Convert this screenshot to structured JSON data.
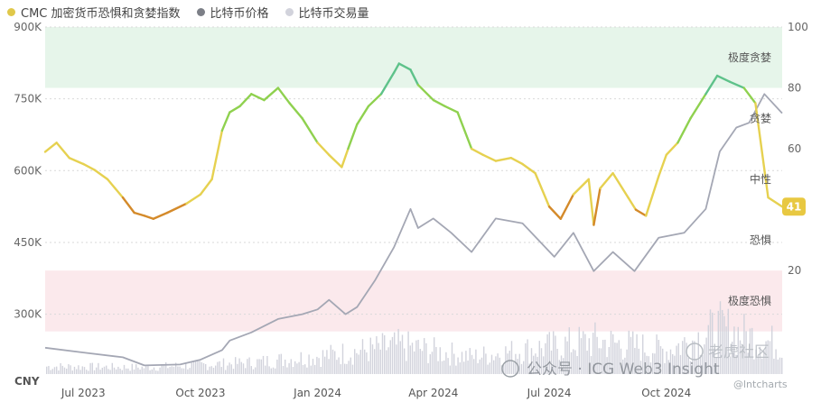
{
  "legend": [
    {
      "label": "CMC 加密货币恐惧和贪婪指数",
      "color": "#e0c84a"
    },
    {
      "label": "比特币价格",
      "color": "#7c7f87"
    },
    {
      "label": "比特币交易量",
      "color": "#d2d3dc"
    }
  ],
  "watermark": {
    "wechat": "公众号 · ICG Web3 Insight",
    "tiger": "老虎社区",
    "handle": "@lntcharts"
  },
  "chart_data": {
    "type": "line",
    "x_ticks": [
      "Jul 2023",
      "Oct 2023",
      "Jan 2024",
      "Apr 2024",
      "Jul 2024",
      "Oct 2024"
    ],
    "x_range": [
      "2023-06-01",
      "2024-12-31"
    ],
    "left_axis": {
      "unit": "CNY",
      "ticks": [
        "300K",
        "450K",
        "600K",
        "750K",
        "900K"
      ],
      "range": [
        175000,
        900000
      ]
    },
    "right_axis": {
      "ticks": [
        "20",
        "40",
        "60",
        "80",
        "100"
      ],
      "range": [
        -14,
        100
      ]
    },
    "zones": [
      {
        "label": "极度贪婪",
        "from": 80,
        "to": 100,
        "color": "#e6f5ea"
      },
      {
        "label": "贪婪",
        "from": 60,
        "to": 80
      },
      {
        "label": "中性",
        "from": 40,
        "to": 60
      },
      {
        "label": "恐惧",
        "from": 20,
        "to": 40
      },
      {
        "label": "极度恐惧",
        "from": 0,
        "to": 20,
        "color": "#fbe9ec"
      }
    ],
    "current_value_badge": "41",
    "series": [
      {
        "name": "CMC 加密货币恐惧和贪婪指数",
        "axis": "right",
        "x": [
          "2023-06-01",
          "2023-06-10",
          "2023-06-20",
          "2023-07-01",
          "2023-07-10",
          "2023-07-20",
          "2023-08-01",
          "2023-08-10",
          "2023-08-18",
          "2023-08-25",
          "2023-09-05",
          "2023-09-20",
          "2023-10-01",
          "2023-10-10",
          "2023-10-18",
          "2023-10-24",
          "2023-11-01",
          "2023-11-10",
          "2023-11-20",
          "2023-12-01",
          "2023-12-10",
          "2023-12-20",
          "2024-01-01",
          "2024-01-10",
          "2024-01-20",
          "2024-01-25",
          "2024-02-01",
          "2024-02-10",
          "2024-02-20",
          "2024-03-01",
          "2024-03-05",
          "2024-03-14",
          "2024-03-20",
          "2024-04-01",
          "2024-04-10",
          "2024-04-20",
          "2024-05-01",
          "2024-05-10",
          "2024-05-20",
          "2024-06-01",
          "2024-06-10",
          "2024-06-20",
          "2024-07-01",
          "2024-07-10",
          "2024-07-20",
          "2024-08-01",
          "2024-08-05",
          "2024-08-10",
          "2024-08-20",
          "2024-09-01",
          "2024-09-07",
          "2024-09-15",
          "2024-09-25",
          "2024-10-01",
          "2024-10-10",
          "2024-10-20",
          "2024-11-01",
          "2024-11-10",
          "2024-11-20",
          "2024-12-01",
          "2024-12-10",
          "2024-12-20",
          "2024-12-31"
        ],
        "values": [
          59,
          62,
          57,
          55,
          53,
          50,
          44,
          39,
          38,
          37,
          39,
          42,
          45,
          50,
          66,
          72,
          74,
          78,
          76,
          80,
          75,
          70,
          62,
          58,
          54,
          60,
          68,
          74,
          78,
          85,
          88,
          86,
          81,
          76,
          74,
          72,
          60,
          58,
          56,
          57,
          55,
          52,
          41,
          37,
          45,
          50,
          35,
          47,
          52,
          44,
          40,
          38,
          51,
          58,
          62,
          70,
          78,
          84,
          82,
          80,
          75,
          44,
          41
        ]
      },
      {
        "name": "比特币价格",
        "axis": "left",
        "x": [
          "2023-06-01",
          "2023-07-01",
          "2023-08-01",
          "2023-08-18",
          "2023-09-15",
          "2023-10-01",
          "2023-10-18",
          "2023-10-24",
          "2023-11-10",
          "2023-12-01",
          "2023-12-20",
          "2024-01-01",
          "2024-01-10",
          "2024-01-23",
          "2024-02-01",
          "2024-02-15",
          "2024-03-01",
          "2024-03-14",
          "2024-03-20",
          "2024-04-01",
          "2024-04-15",
          "2024-05-01",
          "2024-05-20",
          "2024-06-10",
          "2024-07-05",
          "2024-07-20",
          "2024-08-05",
          "2024-08-20",
          "2024-09-06",
          "2024-09-25",
          "2024-10-15",
          "2024-11-01",
          "2024-11-12",
          "2024-11-25",
          "2024-12-05",
          "2024-12-17",
          "2024-12-31"
        ],
        "values": [
          230000,
          220000,
          210000,
          193000,
          195000,
          205000,
          225000,
          245000,
          262000,
          290000,
          300000,
          310000,
          330000,
          300000,
          315000,
          370000,
          440000,
          520000,
          480000,
          500000,
          470000,
          430000,
          500000,
          490000,
          420000,
          470000,
          390000,
          430000,
          390000,
          460000,
          470000,
          520000,
          640000,
          690000,
          700000,
          760000,
          720000
        ]
      },
      {
        "name": "比特币交易量",
        "axis": "left",
        "x": [
          "2023-06-01",
          "2023-08-18",
          "2023-11-10",
          "2024-01-10",
          "2024-03-05",
          "2024-05-01",
          "2024-08-05",
          "2024-10-01",
          "2024-11-12",
          "2024-12-31"
        ],
        "values": [
          8000,
          7000,
          12000,
          20000,
          30000,
          18000,
          35000,
          25000,
          48000,
          30000
        ]
      }
    ]
  }
}
